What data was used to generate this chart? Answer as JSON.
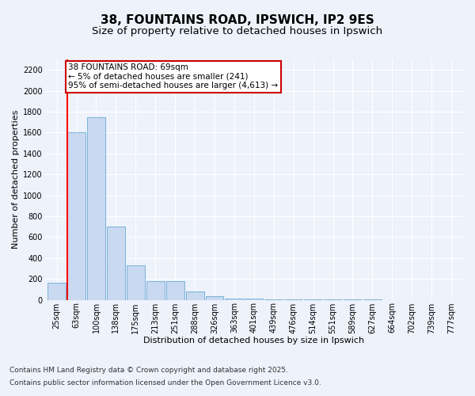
{
  "title1": "38, FOUNTAINS ROAD, IPSWICH, IP2 9ES",
  "title2": "Size of property relative to detached houses in Ipswich",
  "xlabel": "Distribution of detached houses by size in Ipswich",
  "ylabel": "Number of detached properties",
  "categories": [
    "25sqm",
    "63sqm",
    "100sqm",
    "138sqm",
    "175sqm",
    "213sqm",
    "251sqm",
    "288sqm",
    "326sqm",
    "363sqm",
    "401sqm",
    "439sqm",
    "476sqm",
    "514sqm",
    "551sqm",
    "589sqm",
    "627sqm",
    "664sqm",
    "702sqm",
    "739sqm",
    "777sqm"
  ],
  "values": [
    160,
    1600,
    1750,
    700,
    330,
    175,
    175,
    80,
    35,
    15,
    8,
    5,
    3,
    2,
    1,
    1,
    1,
    0,
    0,
    0,
    0
  ],
  "bar_color": "#c8d9f0",
  "bar_edge_color": "#6aaad4",
  "red_line_index": 1,
  "annotation_text": "38 FOUNTAINS ROAD: 69sqm\n← 5% of detached houses are smaller (241)\n95% of semi-detached houses are larger (4,613) →",
  "annotation_box_color": "#ffffff",
  "annotation_box_edge": "#cc0000",
  "ylim": [
    0,
    2300
  ],
  "yticks": [
    0,
    200,
    400,
    600,
    800,
    1000,
    1200,
    1400,
    1600,
    1800,
    2000,
    2200
  ],
  "footer1": "Contains HM Land Registry data © Crown copyright and database right 2025.",
  "footer2": "Contains public sector information licensed under the Open Government Licence v3.0.",
  "bg_color": "#eef2fb",
  "grid_color": "#ffffff",
  "title_fontsize": 11,
  "subtitle_fontsize": 9.5,
  "axis_label_fontsize": 8,
  "tick_fontsize": 7,
  "footer_fontsize": 6.5,
  "annotation_fontsize": 7.5
}
